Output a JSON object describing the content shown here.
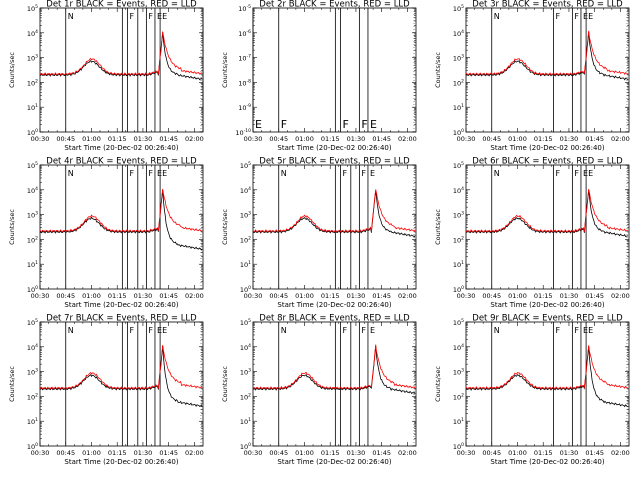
{
  "x_ticks": [
    "00:30",
    "00:45",
    "01:00",
    "01:15",
    "01:30",
    "01:45",
    "02:00"
  ],
  "x_label": "Start Time (20-Dec-02 00:26:40)",
  "y_label": "Counts/sec",
  "colors": {
    "events": "#000000",
    "lld": "#ff0000"
  },
  "chart_data": [
    {
      "type": "line",
      "title": "Det 1r BLACK = Events, RED = LLD",
      "ylabel": "Counts/sec",
      "xlabel": "Start Time (20-Dec-02 00:26:40)",
      "ylog": true,
      "yrange": [
        1,
        100000
      ],
      "ytick_exponents": [
        0,
        1,
        2,
        3,
        4,
        5
      ],
      "xrange": [
        "00:30",
        "02:05"
      ],
      "markers": [
        {
          "time": "00:45",
          "label": "N"
        },
        {
          "time": "01:18",
          "label": ""
        },
        {
          "time": "01:21",
          "label": "F"
        },
        {
          "time": "01:27",
          "label": ""
        },
        {
          "time": "01:32",
          "label": "F"
        },
        {
          "time": "01:37",
          "label": "E"
        },
        {
          "time": "01:40",
          "label": "E"
        },
        {
          "time": "02:05",
          "label": ""
        }
      ],
      "has_data": true,
      "flare_peak": 10000,
      "post_events": 200,
      "post_lld": 300
    },
    {
      "type": "line",
      "title": "Det 2r BLACK = Events, RED = LLD",
      "ylabel": "Counts/sec",
      "xlabel": "Start Time (20-Dec-02 00:26:40)",
      "ylog": true,
      "yrange": [
        1e-10,
        1e-05
      ],
      "ytick_exponents": [
        -10,
        -9,
        -8,
        -7,
        -6,
        -5
      ],
      "xrange": [
        "00:30",
        "02:05"
      ],
      "markers": [
        {
          "time": "00:30",
          "label": "E"
        },
        {
          "time": "00:45",
          "label": "F"
        },
        {
          "time": "01:18",
          "label": ""
        },
        {
          "time": "01:21",
          "label": "F"
        },
        {
          "time": "01:32",
          "label": "F"
        },
        {
          "time": "01:37",
          "label": "E"
        }
      ],
      "has_data": false
    },
    {
      "type": "line",
      "title": "Det 3r BLACK = Events, RED = LLD",
      "ylabel": "Counts/sec",
      "xlabel": "Start Time (20-Dec-02 00:26:40)",
      "ylog": true,
      "yrange": [
        1,
        100000
      ],
      "ytick_exponents": [
        0,
        1,
        2,
        3,
        4,
        5
      ],
      "xrange": [
        "00:30",
        "02:05"
      ],
      "markers": [
        {
          "time": "00:45",
          "label": "N"
        },
        {
          "time": "01:21",
          "label": "F"
        },
        {
          "time": "01:32",
          "label": "F"
        },
        {
          "time": "01:37",
          "label": "E"
        },
        {
          "time": "01:40",
          "label": "E"
        }
      ],
      "has_data": true,
      "flare_peak": 10000,
      "post_events": 200,
      "post_lld": 300
    },
    {
      "type": "line",
      "title": "Det 4r BLACK = Events, RED = LLD",
      "ylabel": "Counts/sec",
      "xlabel": "Start Time (20-Dec-02 00:26:40)",
      "ylog": true,
      "yrange": [
        1,
        100000
      ],
      "ytick_exponents": [
        0,
        1,
        2,
        3,
        4,
        5
      ],
      "xrange": [
        "00:30",
        "02:05"
      ],
      "markers": [
        {
          "time": "00:45",
          "label": "N"
        },
        {
          "time": "01:18",
          "label": ""
        },
        {
          "time": "01:21",
          "label": "F"
        },
        {
          "time": "01:27",
          "label": ""
        },
        {
          "time": "01:32",
          "label": "F"
        },
        {
          "time": "01:37",
          "label": "E"
        },
        {
          "time": "01:40",
          "label": "E"
        }
      ],
      "has_data": true,
      "flare_peak": 10000,
      "post_events": 60,
      "post_lld": 300
    },
    {
      "type": "line",
      "title": "Det 5r BLACK = Events, RED = LLD",
      "ylabel": "Counts/sec",
      "xlabel": "Start Time (20-Dec-02 00:26:40)",
      "ylog": true,
      "yrange": [
        1,
        100000
      ],
      "ytick_exponents": [
        0,
        1,
        2,
        3,
        4,
        5
      ],
      "xrange": [
        "00:30",
        "02:05"
      ],
      "markers": [
        {
          "time": "00:45",
          "label": "N"
        },
        {
          "time": "01:18",
          "label": ""
        },
        {
          "time": "01:21",
          "label": "F"
        },
        {
          "time": "01:27",
          "label": ""
        },
        {
          "time": "01:32",
          "label": "F"
        },
        {
          "time": "01:37",
          "label": "E"
        }
      ],
      "has_data": true,
      "flare_peak": 10000,
      "post_events": 200,
      "post_lld": 300
    },
    {
      "type": "line",
      "title": "Det 6r BLACK = Events, RED = LLD",
      "ylabel": "Counts/sec",
      "xlabel": "Start Time (20-Dec-02 00:26:40)",
      "ylog": true,
      "yrange": [
        1,
        100000
      ],
      "ytick_exponents": [
        0,
        1,
        2,
        3,
        4,
        5
      ],
      "xrange": [
        "00:30",
        "02:05"
      ],
      "markers": [
        {
          "time": "00:45",
          "label": "N"
        },
        {
          "time": "01:21",
          "label": "F"
        },
        {
          "time": "01:32",
          "label": "F"
        },
        {
          "time": "01:37",
          "label": "E"
        },
        {
          "time": "01:40",
          "label": "E"
        }
      ],
      "has_data": true,
      "flare_peak": 10000,
      "post_events": 200,
      "post_lld": 300
    },
    {
      "type": "line",
      "title": "Det 7r BLACK = Events, RED = LLD",
      "ylabel": "Counts/sec",
      "xlabel": "Start Time (20-Dec-02 00:26:40)",
      "ylog": true,
      "yrange": [
        1,
        100000
      ],
      "ytick_exponents": [
        0,
        1,
        2,
        3,
        4,
        5
      ],
      "xrange": [
        "00:30",
        "02:05"
      ],
      "markers": [
        {
          "time": "00:45",
          "label": "N"
        },
        {
          "time": "01:18",
          "label": ""
        },
        {
          "time": "01:21",
          "label": "F"
        },
        {
          "time": "01:27",
          "label": ""
        },
        {
          "time": "01:32",
          "label": "F"
        },
        {
          "time": "01:37",
          "label": "E"
        },
        {
          "time": "01:40",
          "label": "E"
        }
      ],
      "has_data": true,
      "flare_peak": 10000,
      "post_events": 60,
      "post_lld": 300
    },
    {
      "type": "line",
      "title": "Det 8r BLACK = Events, RED = LLD",
      "ylabel": "Counts/sec",
      "xlabel": "Start Time (20-Dec-02 00:26:40)",
      "ylog": true,
      "yrange": [
        1,
        100000
      ],
      "ytick_exponents": [
        0,
        1,
        2,
        3,
        4,
        5
      ],
      "xrange": [
        "00:30",
        "02:05"
      ],
      "markers": [
        {
          "time": "00:45",
          "label": "N"
        },
        {
          "time": "01:18",
          "label": ""
        },
        {
          "time": "01:21",
          "label": "F"
        },
        {
          "time": "01:27",
          "label": ""
        },
        {
          "time": "01:32",
          "label": "F"
        },
        {
          "time": "01:37",
          "label": "E"
        }
      ],
      "has_data": true,
      "flare_peak": 10000,
      "post_events": 200,
      "post_lld": 300
    },
    {
      "type": "line",
      "title": "Det 9r BLACK = Events, RED = LLD",
      "ylabel": "Counts/sec",
      "xlabel": "Start Time (20-Dec-02 00:26:40)",
      "ylog": true,
      "yrange": [
        1,
        100000
      ],
      "ytick_exponents": [
        0,
        1,
        2,
        3,
        4,
        5
      ],
      "xrange": [
        "00:30",
        "02:05"
      ],
      "markers": [
        {
          "time": "00:45",
          "label": "N"
        },
        {
          "time": "01:21",
          "label": "F"
        },
        {
          "time": "01:32",
          "label": "F"
        },
        {
          "time": "01:37",
          "label": "E"
        },
        {
          "time": "01:40",
          "label": "E"
        }
      ],
      "has_data": true,
      "flare_peak": 10000,
      "post_events": 60,
      "post_lld": 300
    }
  ]
}
